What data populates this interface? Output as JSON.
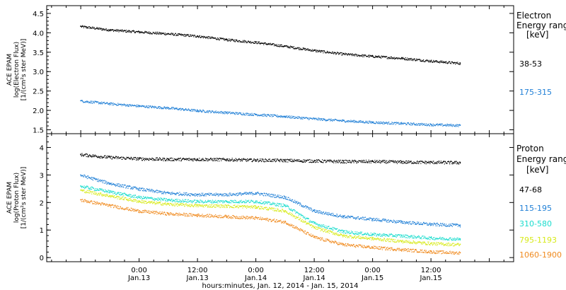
{
  "chart_data": [
    {
      "type": "scatter",
      "panel": "electron",
      "ylabel": [
        "ACE EPAM",
        "log(Electron Flux)",
        "[1/(cm²s ster MeV)]"
      ],
      "ylim": [
        1.4,
        4.7
      ],
      "yticks": [
        1.5,
        2.0,
        2.5,
        3.0,
        3.5,
        4.0,
        4.5
      ],
      "ytick_labels": [
        "1.5",
        "2.0",
        "2.5",
        "3.0",
        "3.5",
        "4.0",
        "4.5"
      ],
      "legend_title": [
        "Electron",
        "Energy range",
        "[keV]"
      ],
      "series": [
        {
          "name": "38-53",
          "color": "#000000",
          "x": [
            0,
            6,
            12,
            18,
            24,
            30,
            36,
            42,
            48,
            54,
            60,
            66,
            72,
            78
          ],
          "y": [
            4.17,
            4.08,
            4.03,
            3.98,
            3.92,
            3.83,
            3.76,
            3.66,
            3.55,
            3.46,
            3.4,
            3.35,
            3.28,
            3.22
          ]
        },
        {
          "name": "175-315",
          "color": "#1f7fd6",
          "x": [
            0,
            6,
            12,
            18,
            24,
            30,
            36,
            42,
            48,
            54,
            60,
            66,
            72,
            78
          ],
          "y": [
            2.25,
            2.18,
            2.12,
            2.07,
            2.0,
            1.95,
            1.9,
            1.85,
            1.79,
            1.74,
            1.7,
            1.67,
            1.64,
            1.62
          ]
        }
      ]
    },
    {
      "type": "scatter",
      "panel": "proton",
      "ylabel": [
        "ACE EPAM",
        "log(Proton Flux)",
        "[1/(cm²s ster MeV)]"
      ],
      "ylim": [
        -0.15,
        4.5
      ],
      "yticks": [
        0,
        1,
        2,
        3,
        4
      ],
      "ytick_labels": [
        "0",
        "1",
        "2",
        "3",
        "4"
      ],
      "legend_title": [
        "Proton",
        "Energy range",
        "[keV]"
      ],
      "series": [
        {
          "name": "47-68",
          "color": "#000000",
          "x": [
            0,
            6,
            12,
            18,
            24,
            30,
            36,
            42,
            48,
            54,
            60,
            66,
            72,
            78
          ],
          "y": [
            3.75,
            3.65,
            3.6,
            3.58,
            3.58,
            3.57,
            3.55,
            3.54,
            3.52,
            3.5,
            3.5,
            3.48,
            3.47,
            3.46
          ]
        },
        {
          "name": "115-195",
          "color": "#1f7fd6",
          "x": [
            0,
            6,
            12,
            18,
            24,
            30,
            36,
            42,
            48,
            54,
            60,
            66,
            72,
            78
          ],
          "y": [
            3.0,
            2.7,
            2.5,
            2.35,
            2.3,
            2.3,
            2.35,
            2.2,
            1.7,
            1.5,
            1.4,
            1.3,
            1.22,
            1.18
          ]
        },
        {
          "name": "310-580",
          "color": "#19dccd",
          "x": [
            0,
            6,
            12,
            18,
            24,
            30,
            36,
            42,
            48,
            54,
            60,
            66,
            72,
            78
          ],
          "y": [
            2.6,
            2.4,
            2.2,
            2.1,
            2.05,
            2.05,
            2.05,
            1.9,
            1.25,
            0.95,
            0.85,
            0.8,
            0.72,
            0.68
          ]
        },
        {
          "name": "795-1193",
          "color": "#d7ea1a",
          "x": [
            0,
            6,
            12,
            18,
            24,
            30,
            36,
            42,
            48,
            54,
            60,
            66,
            72,
            78
          ],
          "y": [
            2.45,
            2.25,
            2.05,
            1.95,
            1.9,
            1.88,
            1.85,
            1.7,
            1.1,
            0.8,
            0.7,
            0.6,
            0.52,
            0.48
          ]
        },
        {
          "name": "1060-1900",
          "color": "#f08a1e",
          "x": [
            0,
            6,
            12,
            18,
            24,
            30,
            36,
            42,
            48,
            54,
            60,
            66,
            72,
            78
          ],
          "y": [
            2.1,
            1.9,
            1.7,
            1.6,
            1.55,
            1.5,
            1.45,
            1.3,
            0.75,
            0.48,
            0.38,
            0.3,
            0.22,
            0.18
          ]
        }
      ]
    }
  ],
  "xaxis": {
    "ticks": [
      {
        "t": 12,
        "time": "0:00",
        "date": "Jan.13"
      },
      {
        "t": 24,
        "time": "12:00",
        "date": "Jan.13"
      },
      {
        "t": 36,
        "time": "0:00",
        "date": "Jan.14"
      },
      {
        "t": 48,
        "time": "12:00",
        "date": "Jan.14"
      },
      {
        "t": 60,
        "time": "0:00",
        "date": "Jan.15"
      },
      {
        "t": 72,
        "time": "12:00",
        "date": "Jan.15"
      }
    ],
    "label": "hours:minutes, Jan. 12, 2014 - Jan. 15, 2014"
  }
}
